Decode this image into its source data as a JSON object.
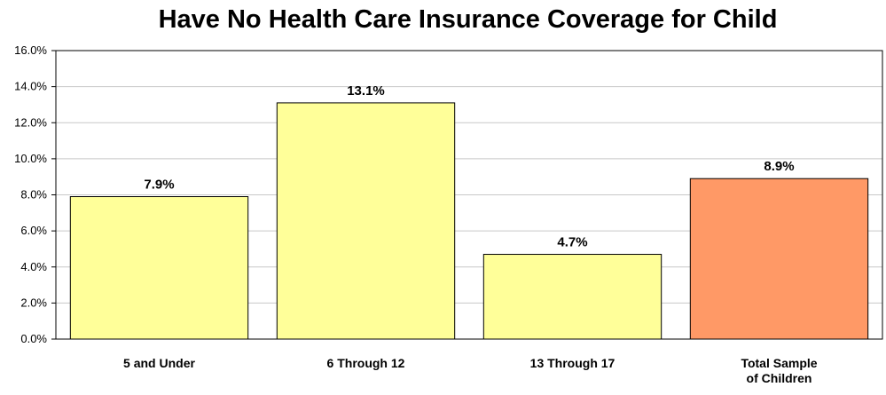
{
  "chart_data": {
    "type": "bar",
    "title": "Have No Health Care Insurance Coverage for Child",
    "categories": [
      "5 and Under",
      "6 Through 12",
      "13 Through 17",
      "Total Sample of Children"
    ],
    "category_lines": [
      [
        "5 and Under"
      ],
      [
        "6 Through 12"
      ],
      [
        "13 Through 17"
      ],
      [
        "Total Sample",
        "of Children"
      ]
    ],
    "values": [
      7.9,
      13.1,
      4.7,
      8.9
    ],
    "data_labels": [
      "7.9%",
      "13.1%",
      "4.7%",
      "8.9%"
    ],
    "bar_colors": [
      "#ffff99",
      "#ffff99",
      "#ffff99",
      "#ff9966"
    ],
    "ylim": [
      0,
      16
    ],
    "ytick_values": [
      0,
      2,
      4,
      6,
      8,
      10,
      12,
      14,
      16
    ],
    "yticks": [
      "0.0%",
      "2.0%",
      "4.0%",
      "6.0%",
      "8.0%",
      "10.0%",
      "12.0%",
      "14.0%",
      "16.0%"
    ],
    "xlabel": "",
    "ylabel": "",
    "grid": true
  }
}
